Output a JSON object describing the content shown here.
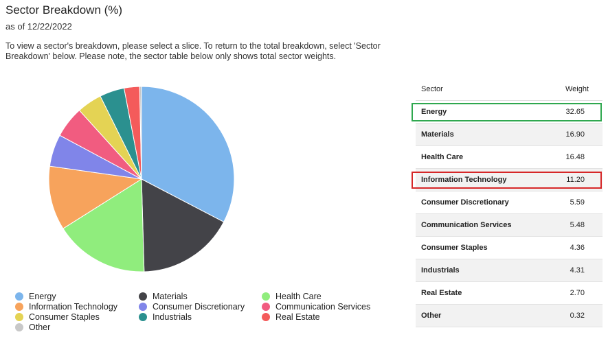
{
  "header": {
    "title": "Sector Breakdown (%)",
    "as_of": "as of 12/22/2022",
    "description": "To view a sector's breakdown, please select a slice. To return to the total breakdown, select 'Sector Breakdown' below. Please note, the sector table below only shows total sector weights."
  },
  "table": {
    "col_sector": "Sector",
    "col_weight": "Weight"
  },
  "chart_data": {
    "type": "pie",
    "categories": [
      "Energy",
      "Materials",
      "Health Care",
      "Information Technology",
      "Consumer Discretionary",
      "Communication Services",
      "Consumer Staples",
      "Industrials",
      "Real Estate",
      "Other"
    ],
    "values": [
      32.65,
      16.9,
      16.48,
      11.2,
      5.59,
      5.48,
      4.36,
      4.31,
      2.7,
      0.32
    ],
    "value_labels": [
      "32.65",
      "16.90",
      "16.48",
      "11.20",
      "5.59",
      "5.48",
      "4.36",
      "4.31",
      "2.70",
      "0.32"
    ],
    "colors": [
      "#7cb5ec",
      "#434348",
      "#90ed7d",
      "#f7a35c",
      "#8085e9",
      "#f15c80",
      "#e4d354",
      "#2b908f",
      "#f45b5b",
      "#c8c8c8"
    ],
    "legend_position": "bottom"
  },
  "highlights": {
    "green_row": "Energy",
    "red_row": "Information Technology",
    "green_color": "#2fa84f",
    "red_color": "#d62728"
  }
}
